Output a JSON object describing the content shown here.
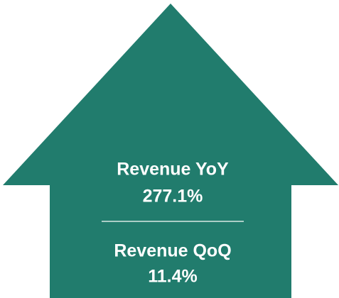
{
  "metrics": [
    {
      "label": "Revenue YoY",
      "value": "277.1%"
    },
    {
      "label": "Revenue QoQ",
      "value": "11.4%"
    }
  ]
}
